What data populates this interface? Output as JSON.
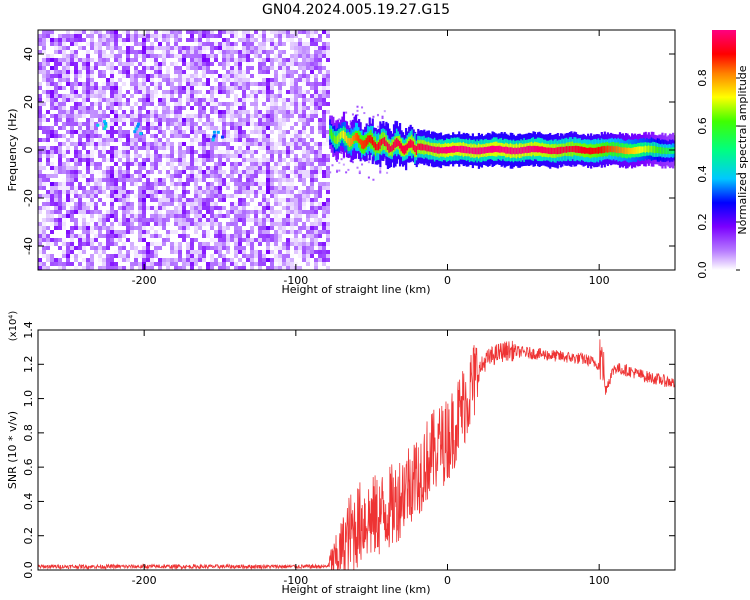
{
  "title": "GN04.2024.005.19.27.G15",
  "chart_data": [
    {
      "type": "heatmap",
      "xlabel": "Height of straight line (km)",
      "ylabel": "Frequency (Hz)",
      "xlim": [
        -270,
        150
      ],
      "ylim": [
        -50,
        50
      ],
      "xticks": [
        -200,
        -100,
        0,
        100
      ],
      "yticks": [
        -40,
        -20,
        0,
        20,
        40
      ],
      "colorbar": {
        "label": "Normalized spectral amplitude",
        "range": [
          0,
          1
        ],
        "ticks": [
          "0.0",
          "0.2",
          "0.4",
          "0.6",
          "0.8"
        ],
        "colormap": [
          "#ffffff",
          "#7b00ff",
          "#0000ff",
          "#00ffff",
          "#00ff00",
          "#ffff00",
          "#ff0000",
          "#ff0080"
        ]
      },
      "noise_region": {
        "x_range": [
          -270,
          -78
        ],
        "y_range": [
          -50,
          50
        ],
        "amplitude_range": [
          0.0,
          0.2
        ]
      },
      "signal_ridge": [
        {
          "x": -78,
          "y": 6,
          "amplitude": 0.6
        },
        {
          "x": -60,
          "y": 4,
          "amplitude": 0.85
        },
        {
          "x": -40,
          "y": 2,
          "amplitude": 0.95
        },
        {
          "x": -20,
          "y": 1,
          "amplitude": 0.95
        },
        {
          "x": 0,
          "y": 0,
          "amplitude": 1.0
        },
        {
          "x": 50,
          "y": 0,
          "amplitude": 1.0
        },
        {
          "x": 100,
          "y": 0,
          "amplitude": 0.9
        },
        {
          "x": 130,
          "y": 0,
          "amplitude": 0.7
        },
        {
          "x": 150,
          "y": 0,
          "amplitude": 0.5
        }
      ],
      "noise_hotspots": [
        {
          "x": -228,
          "y": 10,
          "amplitude": 0.35
        },
        {
          "x": -205,
          "y": 9,
          "amplitude": 0.3
        },
        {
          "x": -152,
          "y": 6,
          "amplitude": 0.3
        }
      ]
    },
    {
      "type": "line",
      "xlabel": "Height of straight line (km)",
      "ylabel": "SNR (10 * v/v)",
      "y_multiplier": "(x10⁴)",
      "xlim": [
        -270,
        150
      ],
      "ylim": [
        0,
        1.4
      ],
      "xticks": [
        -200,
        -100,
        0,
        100
      ],
      "yticks": [
        "0.0",
        "0.2",
        "0.4",
        "0.6",
        "0.8",
        "1.0",
        "1.2",
        "1.4"
      ],
      "color": "#ee3333",
      "series": [
        {
          "x": [
            -270,
            -240,
            -200,
            -150,
            -100,
            -80,
            -75,
            -70,
            -65,
            -60,
            -55,
            -50,
            -45,
            -40,
            -35,
            -30,
            -25,
            -20,
            -15,
            -10,
            -5,
            0,
            5,
            10,
            15,
            20,
            25,
            30,
            35,
            40,
            50,
            60,
            70,
            80,
            90,
            100,
            102,
            104,
            110,
            120,
            130,
            140,
            150
          ],
          "y": [
            0.02,
            0.02,
            0.02,
            0.02,
            0.02,
            0.02,
            0.05,
            0.12,
            0.2,
            0.25,
            0.3,
            0.3,
            0.32,
            0.35,
            0.38,
            0.45,
            0.52,
            0.55,
            0.62,
            0.68,
            0.72,
            0.76,
            0.85,
            0.95,
            1.05,
            1.15,
            1.22,
            1.25,
            1.27,
            1.28,
            1.27,
            1.26,
            1.25,
            1.24,
            1.23,
            1.2,
            1.3,
            1.05,
            1.18,
            1.16,
            1.13,
            1.11,
            1.09
          ]
        }
      ]
    }
  ]
}
